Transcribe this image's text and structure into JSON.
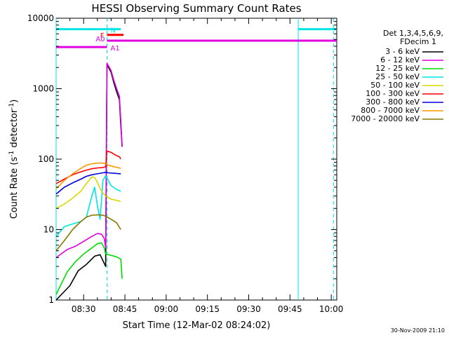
{
  "chart_data": {
    "type": "line",
    "title": "HESSI Observing Summary Count Rates",
    "xlabel": "Start Time (12-Mar-02 08:24:02)",
    "ylabel": "Count Rate (s",
    "ylabel_sup1": "-1",
    "ylabel_mid": " detector",
    "ylabel_sup2": "-1",
    "ylabel_end": ")",
    "yscale": "log",
    "ylim": [
      1,
      10000
    ],
    "xlim_minutes": [
      -4,
      98
    ],
    "xticks": [
      {
        "label": "08:30",
        "t": 6
      },
      {
        "label": "08:45",
        "t": 21
      },
      {
        "label": "09:00",
        "t": 36
      },
      {
        "label": "09:15",
        "t": 51
      },
      {
        "label": "09:30",
        "t": 66
      },
      {
        "label": "09:45",
        "t": 81
      },
      {
        "label": "10:00",
        "t": 96
      }
    ],
    "yticks": [
      {
        "label": "1",
        "v": 1
      },
      {
        "label": "10",
        "v": 10
      },
      {
        "label": "100",
        "v": 100
      },
      {
        "label": "1000",
        "v": 1000
      },
      {
        "label": "10000",
        "v": 10000
      }
    ],
    "legend_header": [
      "Det 1,3,4,5,6,9,",
      "FDecim 1"
    ],
    "series": [
      {
        "name": "3 - 6 keV",
        "color": "#000000",
        "points": [
          [
            -4,
            1
          ],
          [
            1,
            1.6
          ],
          [
            4,
            2.6
          ],
          [
            7,
            3.2
          ],
          [
            10,
            4.2
          ],
          [
            12,
            4.4
          ],
          [
            14,
            3.0
          ],
          [
            14.5,
            2200
          ],
          [
            16,
            1700
          ],
          [
            17,
            1200
          ],
          [
            18,
            900
          ],
          [
            19,
            700
          ],
          [
            19.5,
            300
          ],
          [
            20,
            150
          ]
        ]
      },
      {
        "name": "6 - 12 keV",
        "color": "#e000e0",
        "points": [
          [
            -4,
            4
          ],
          [
            0,
            5.2
          ],
          [
            3,
            5.8
          ],
          [
            6,
            6.8
          ],
          [
            9,
            8
          ],
          [
            11,
            8.8
          ],
          [
            12.5,
            8.6
          ],
          [
            13.5,
            7.5
          ],
          [
            14,
            5.5
          ],
          [
            14.5,
            2300
          ],
          [
            16,
            1800
          ],
          [
            17,
            1300
          ],
          [
            18,
            1000
          ],
          [
            19,
            780
          ],
          [
            19.5,
            350
          ],
          [
            20,
            150
          ]
        ]
      },
      {
        "name": "12 - 25 keV",
        "color": "#00dd00",
        "points": [
          [
            -4,
            1.2
          ],
          [
            0,
            2.5
          ],
          [
            3,
            3.5
          ],
          [
            6,
            4.5
          ],
          [
            9,
            5.5
          ],
          [
            11,
            6.3
          ],
          [
            12.5,
            6.5
          ],
          [
            13.5,
            5.5
          ],
          [
            14,
            4.5
          ],
          [
            16,
            4.3
          ],
          [
            18,
            4.1
          ],
          [
            19.5,
            3.8
          ],
          [
            20,
            2
          ]
        ]
      },
      {
        "name": "25 - 50 keV",
        "color": "#00e5e5",
        "points": [
          [
            -4,
            8
          ],
          [
            -1,
            11
          ],
          [
            2,
            12
          ],
          [
            5,
            13
          ],
          [
            7,
            15
          ],
          [
            9,
            30
          ],
          [
            10,
            40
          ],
          [
            11,
            22
          ],
          [
            12,
            14
          ],
          [
            13,
            50
          ],
          [
            14,
            58
          ],
          [
            16,
            42
          ],
          [
            18,
            37
          ],
          [
            19.5,
            35
          ]
        ]
      },
      {
        "name": "50 - 100 keV",
        "color": "#d8d800",
        "points": [
          [
            -4,
            20
          ],
          [
            -1,
            23
          ],
          [
            2,
            28
          ],
          [
            5,
            35
          ],
          [
            7,
            45
          ],
          [
            9,
            56
          ],
          [
            10,
            55
          ],
          [
            11,
            47
          ],
          [
            12,
            38
          ],
          [
            13,
            33
          ],
          [
            14,
            30
          ],
          [
            16,
            27
          ],
          [
            18,
            26
          ],
          [
            19.5,
            25
          ]
        ]
      },
      {
        "name": "100 - 300 keV",
        "color": "#ff0000",
        "points": [
          [
            -4,
            45
          ],
          [
            -1,
            52
          ],
          [
            2,
            60
          ],
          [
            5,
            66
          ],
          [
            7,
            70
          ],
          [
            9,
            73
          ],
          [
            11,
            75
          ],
          [
            13,
            76
          ],
          [
            14,
            78
          ],
          [
            14.5,
            130
          ],
          [
            16,
            125
          ],
          [
            17,
            118
          ],
          [
            18,
            112
          ],
          [
            19,
            108
          ],
          [
            19.5,
            100
          ]
        ]
      },
      {
        "name": "300 - 800 keV",
        "color": "#0000dd",
        "points": [
          [
            -4,
            32
          ],
          [
            -1,
            40
          ],
          [
            2,
            46
          ],
          [
            5,
            52
          ],
          [
            7,
            57
          ],
          [
            9,
            60
          ],
          [
            11,
            62
          ],
          [
            13,
            64
          ],
          [
            14,
            65
          ],
          [
            15,
            64
          ],
          [
            17,
            63
          ],
          [
            19.5,
            62
          ]
        ]
      },
      {
        "name": "800 - 7000 keV",
        "color": "#ff9900",
        "points": [
          [
            -4,
            38
          ],
          [
            -1,
            50
          ],
          [
            2,
            62
          ],
          [
            5,
            74
          ],
          [
            7,
            82
          ],
          [
            9,
            86
          ],
          [
            11,
            88
          ],
          [
            13,
            88
          ],
          [
            14,
            86
          ],
          [
            15,
            82
          ],
          [
            17,
            78
          ],
          [
            19.5,
            74
          ]
        ]
      },
      {
        "name": "7000 - 20000 keV",
        "color": "#887700",
        "points": [
          [
            -4,
            5
          ],
          [
            -1,
            7
          ],
          [
            2,
            10
          ],
          [
            5,
            13
          ],
          [
            7,
            15
          ],
          [
            9,
            16
          ],
          [
            11,
            16.2
          ],
          [
            13,
            16
          ],
          [
            14,
            15.5
          ],
          [
            16,
            14
          ],
          [
            18,
            12.5
          ],
          [
            19.5,
            10
          ]
        ]
      }
    ],
    "flag_bars": [
      {
        "label": "N",
        "color": "#00e5e5",
        "y": 7000,
        "segments": [
          [
            -4,
            14.5
          ],
          [
            14.5,
            19.5
          ],
          [
            84,
            98
          ]
        ]
      },
      {
        "label": "F",
        "color": "#ff0000",
        "y": 5800,
        "segments": [
          [
            14.5,
            20.5
          ]
        ]
      },
      {
        "label": "A0",
        "color": "#e000e0",
        "y": 4800,
        "segments": [
          [
            14.5,
            98
          ]
        ]
      },
      {
        "label": "A1",
        "color": "#e000e0",
        "y": 3900,
        "segments": [
          [
            -4,
            14.5
          ]
        ]
      }
    ],
    "vlines": [
      {
        "t": -4,
        "style": "solid",
        "color": "#00e5e5"
      },
      {
        "t": 14.5,
        "style": "dashed",
        "color": "#00e5e5"
      },
      {
        "t": 84,
        "style": "solid",
        "color": "#00e5e5"
      },
      {
        "t": 96.8,
        "style": "dashed",
        "color": "#00e5e5"
      }
    ],
    "legend_placement": "right"
  },
  "timestamp": "30-Nov-2009 21:10"
}
